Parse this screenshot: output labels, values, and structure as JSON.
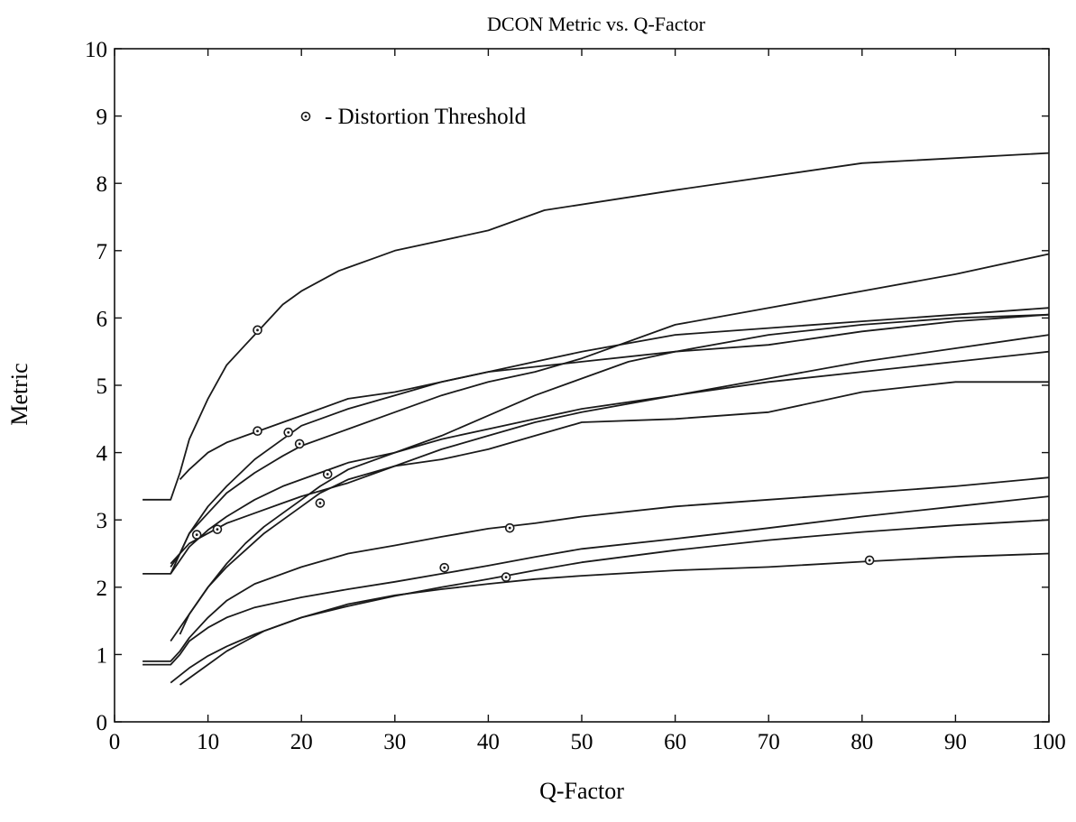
{
  "chart_data": {
    "type": "line",
    "title": "DCON Metric vs. Q-Factor",
    "xlabel": "Q-Factor",
    "ylabel": "Metric",
    "xlim": [
      0,
      100
    ],
    "ylim": [
      0,
      10
    ],
    "x_ticks": [
      "0",
      "10",
      "20",
      "30",
      "40",
      "50",
      "60",
      "70",
      "80",
      "90",
      "100"
    ],
    "y_ticks": [
      "0",
      "1",
      "2",
      "3",
      "4",
      "5",
      "6",
      "7",
      "8",
      "9",
      "10"
    ],
    "grid": false,
    "legend": {
      "placement": "top-left",
      "marker": "circle",
      "text": "- Distortion Threshold"
    },
    "series": [
      {
        "x": [
          3,
          6,
          7,
          8,
          10,
          12,
          14,
          16,
          18,
          20,
          24,
          28,
          30,
          40,
          46,
          60,
          80,
          100
        ],
        "y": [
          3.3,
          3.3,
          3.7,
          4.2,
          4.8,
          5.3,
          5.6,
          5.9,
          6.2,
          6.4,
          6.7,
          6.9,
          7.0,
          7.3,
          7.6,
          7.9,
          8.3,
          8.45
        ]
      },
      {
        "x": [
          7,
          8,
          10,
          12,
          14,
          16,
          20,
          25,
          30,
          35,
          40,
          50,
          60,
          70,
          80,
          90,
          100
        ],
        "y": [
          3.6,
          3.75,
          4.0,
          4.15,
          4.25,
          4.35,
          4.55,
          4.8,
          4.9,
          5.05,
          5.2,
          5.35,
          5.5,
          5.6,
          5.8,
          5.95,
          6.05
        ]
      },
      {
        "x": [
          3,
          6,
          7,
          8,
          10,
          12,
          15,
          18,
          20,
          25,
          30,
          35,
          40,
          45,
          50,
          60,
          70,
          80,
          90,
          100
        ],
        "y": [
          2.2,
          2.2,
          2.5,
          2.8,
          3.2,
          3.5,
          3.9,
          4.2,
          4.4,
          4.65,
          4.85,
          5.05,
          5.2,
          5.35,
          5.5,
          5.75,
          5.85,
          5.95,
          6.05,
          6.15
        ]
      },
      {
        "x": [
          6,
          7,
          8,
          10,
          12,
          15,
          18,
          20,
          25,
          30,
          35,
          40,
          45,
          50,
          60,
          70,
          80,
          90,
          100
        ],
        "y": [
          2.3,
          2.5,
          2.8,
          3.1,
          3.4,
          3.7,
          3.95,
          4.1,
          4.35,
          4.6,
          4.85,
          5.05,
          5.2,
          5.4,
          5.9,
          6.15,
          6.4,
          6.65,
          6.95
        ]
      },
      {
        "x": [
          6,
          7,
          8,
          10,
          12,
          15,
          18,
          20,
          25,
          30,
          35,
          40,
          45,
          50,
          60,
          70,
          80,
          90,
          100
        ],
        "y": [
          2.2,
          2.4,
          2.6,
          2.85,
          3.05,
          3.3,
          3.5,
          3.6,
          3.85,
          4.0,
          4.2,
          4.35,
          4.5,
          4.65,
          4.85,
          5.05,
          5.2,
          5.35,
          5.5
        ]
      },
      {
        "x": [
          6,
          7,
          8,
          10,
          12,
          15,
          18,
          20,
          25,
          30,
          35,
          40,
          45,
          50,
          60,
          70,
          80,
          90,
          100
        ],
        "y": [
          2.35,
          2.5,
          2.65,
          2.8,
          2.95,
          3.1,
          3.25,
          3.35,
          3.55,
          3.8,
          4.05,
          4.25,
          4.45,
          4.6,
          4.85,
          5.1,
          5.35,
          5.55,
          5.75
        ]
      },
      {
        "x": [
          6,
          8,
          10,
          12,
          14,
          16,
          18,
          20,
          22,
          25,
          30,
          35,
          40,
          45,
          50,
          60,
          70,
          80,
          90,
          100
        ],
        "y": [
          1.2,
          1.6,
          2.0,
          2.3,
          2.55,
          2.8,
          3.0,
          3.2,
          3.4,
          3.6,
          3.8,
          3.9,
          4.05,
          4.25,
          4.45,
          4.5,
          4.6,
          4.9,
          5.05,
          5.05
        ]
      },
      {
        "x": [
          7,
          8,
          10,
          12,
          14,
          16,
          18,
          20,
          22,
          25,
          30,
          35,
          40,
          45,
          50,
          55,
          60,
          70,
          80,
          90,
          100
        ],
        "y": [
          1.3,
          1.6,
          2.0,
          2.35,
          2.65,
          2.9,
          3.1,
          3.3,
          3.5,
          3.75,
          4.0,
          4.25,
          4.55,
          4.85,
          5.1,
          5.35,
          5.5,
          5.75,
          5.9,
          6.0,
          6.05
        ]
      },
      {
        "x": [
          3,
          6,
          7,
          8,
          10,
          12,
          15,
          20,
          25,
          30,
          35,
          40,
          45,
          50,
          60,
          70,
          80,
          90,
          100
        ],
        "y": [
          0.9,
          0.9,
          1.05,
          1.25,
          1.55,
          1.8,
          2.05,
          2.3,
          2.5,
          2.62,
          2.75,
          2.87,
          2.95,
          3.05,
          3.2,
          3.3,
          3.4,
          3.5,
          3.63
        ]
      },
      {
        "x": [
          3,
          6,
          7,
          8,
          10,
          12,
          15,
          20,
          25,
          30,
          35,
          40,
          45,
          50,
          60,
          70,
          80,
          90,
          100
        ],
        "y": [
          0.85,
          0.85,
          1.0,
          1.2,
          1.4,
          1.55,
          1.7,
          1.85,
          1.97,
          2.08,
          2.2,
          2.32,
          2.45,
          2.57,
          2.72,
          2.88,
          3.05,
          3.2,
          3.35
        ]
      },
      {
        "x": [
          6,
          8,
          10,
          12,
          15,
          20,
          25,
          30,
          35,
          40,
          45,
          50,
          60,
          70,
          80,
          90,
          100
        ],
        "y": [
          0.58,
          0.8,
          0.98,
          1.12,
          1.3,
          1.55,
          1.72,
          1.87,
          2.0,
          2.12,
          2.25,
          2.37,
          2.55,
          2.7,
          2.82,
          2.92,
          3.0
        ]
      },
      {
        "x": [
          7,
          8,
          10,
          12,
          14,
          16,
          20,
          25,
          30,
          35,
          40,
          45,
          50,
          60,
          70,
          80,
          90,
          100
        ],
        "y": [
          0.55,
          0.65,
          0.85,
          1.05,
          1.2,
          1.35,
          1.55,
          1.75,
          1.88,
          1.97,
          2.05,
          2.12,
          2.17,
          2.25,
          2.3,
          2.38,
          2.45,
          2.5
        ]
      }
    ],
    "threshold_points": [
      {
        "x": 15.3,
        "y": 5.82
      },
      {
        "x": 15.3,
        "y": 4.32
      },
      {
        "x": 18.6,
        "y": 4.3
      },
      {
        "x": 19.8,
        "y": 4.13
      },
      {
        "x": 22.8,
        "y": 3.68
      },
      {
        "x": 22.0,
        "y": 3.25
      },
      {
        "x": 8.8,
        "y": 2.78
      },
      {
        "x": 11.0,
        "y": 2.86
      },
      {
        "x": 42.3,
        "y": 2.88
      },
      {
        "x": 35.3,
        "y": 2.29
      },
      {
        "x": 41.9,
        "y": 2.15
      },
      {
        "x": 80.8,
        "y": 2.4
      }
    ]
  }
}
